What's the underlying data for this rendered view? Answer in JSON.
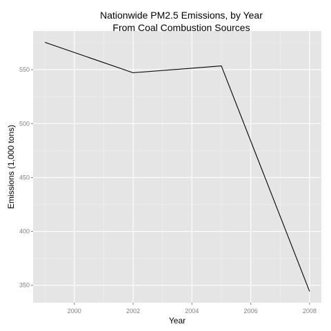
{
  "chart_data": {
    "type": "line",
    "title": "Nationwide PM2.5 Emissions, by Year",
    "subtitle": "From Coal Combustion Sources",
    "xlabel": "Year",
    "ylabel": "Emissions (1,000 tons)",
    "x": [
      1999,
      2002,
      2005,
      2008
    ],
    "series": [
      {
        "values": [
          575.4,
          547.2,
          553.5,
          344.3
        ]
      }
    ],
    "xlim": [
      1998.6,
      2008.4
    ],
    "ylim": [
      333.8,
      585.9
    ],
    "x_ticks": [
      2000,
      2002,
      2004,
      2006,
      2008
    ],
    "y_ticks": [
      350,
      400,
      450,
      500,
      550
    ],
    "x_tick_labels": [
      "2000",
      "2002",
      "2004",
      "2006",
      "2008"
    ],
    "y_tick_labels": [
      "350",
      "400",
      "450",
      "500",
      "550"
    ],
    "grid": true,
    "colors": {
      "panel": "#e5e5e5",
      "grid_major": "#ffffff",
      "grid_minor": "#f2f2f2",
      "line": "#000000",
      "tick_text": "#7f7f7f"
    }
  }
}
